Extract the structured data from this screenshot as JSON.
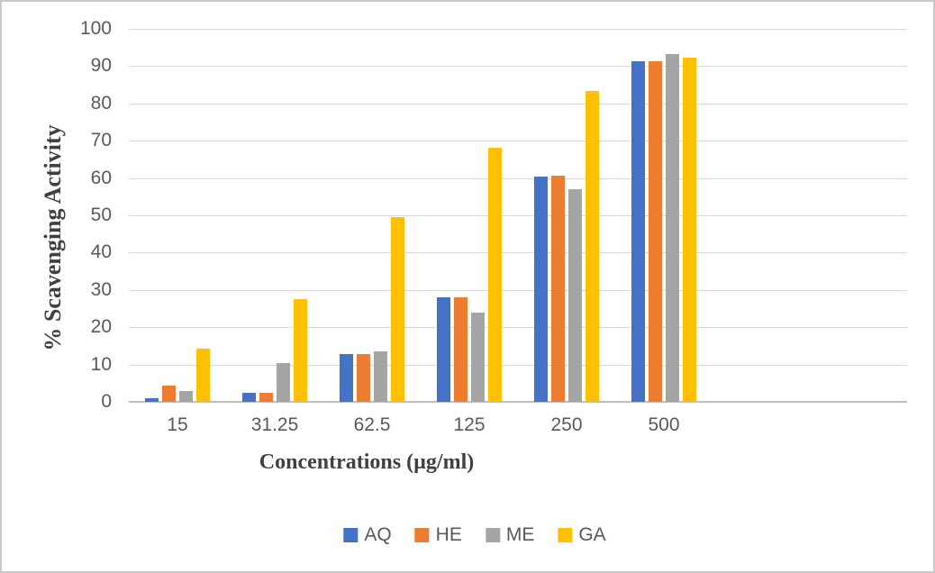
{
  "chart_data": {
    "type": "bar",
    "title": "",
    "categories": [
      "15",
      "31.25",
      "62.5",
      "125",
      "250",
      "500"
    ],
    "series": [
      {
        "name": "AQ",
        "color": "#4472C4",
        "values": [
          1.0,
          2.3,
          12.7,
          28.0,
          60.4,
          91.2
        ]
      },
      {
        "name": "HE",
        "color": "#ED7D31",
        "values": [
          4.3,
          2.3,
          12.7,
          28.0,
          60.6,
          91.2
        ]
      },
      {
        "name": "ME",
        "color": "#A5A5A5",
        "values": [
          2.9,
          10.3,
          13.6,
          23.8,
          56.9,
          93.2
        ]
      },
      {
        "name": "GA",
        "color": "#FFC000",
        "values": [
          14.2,
          27.6,
          49.4,
          68.0,
          83.3,
          92.3
        ]
      }
    ],
    "xlabel": "Concentrations (µg/ml)",
    "ylabel": "% Scavenging Activity",
    "ylim": [
      0,
      100
    ],
    "yticks": [
      0,
      10,
      20,
      30,
      40,
      50,
      60,
      70,
      80,
      90,
      100
    ],
    "grid": true,
    "legend_position": "bottom",
    "legend_entries": [
      "AQ",
      "HE",
      "ME",
      "GA"
    ],
    "empty_trailing_category_slots": 2
  },
  "colors": {
    "gridline": "#D9D9D9",
    "axis_line": "#BFBFBF",
    "tick_text": "#595959",
    "title_text": "#404040",
    "frame_border": "#C9C9C9",
    "background": "#FFFFFF"
  }
}
